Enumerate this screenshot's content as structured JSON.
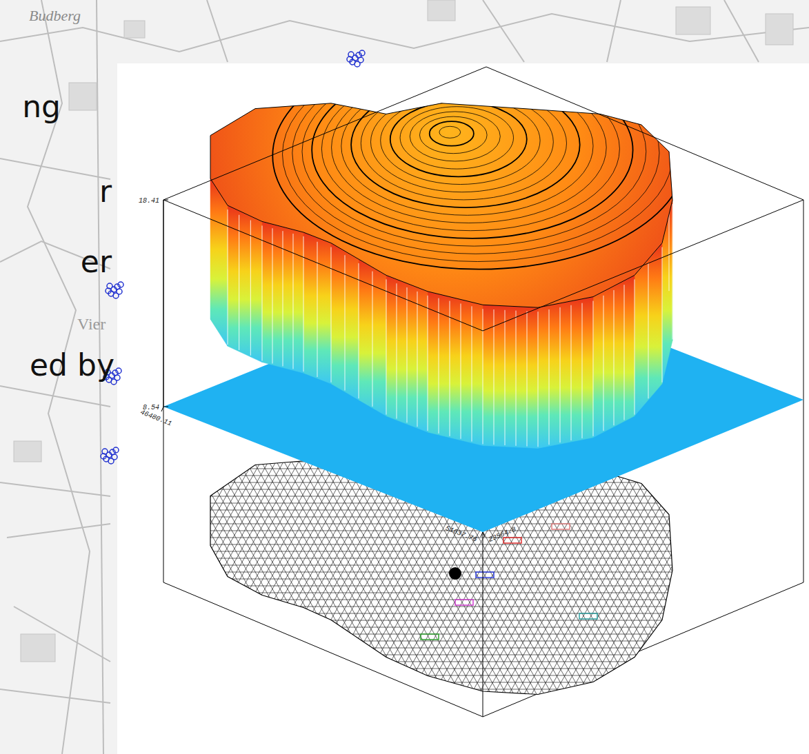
{
  "chart_data": {
    "type": "surface",
    "ylim": [
      8.54,
      18.41
    ],
    "yticks": [
      8.54,
      18.41
    ],
    "xlim": [
      46480.11,
      51637.76
    ],
    "xticks": [
      46480.11,
      51637.76
    ],
    "northing_ticks": [
      23564.8
    ],
    "contour_levels": [
      17.5,
      17,
      16.5,
      16,
      15.5,
      15,
      14.5,
      14,
      13.5,
      13,
      12.5,
      12,
      11.5,
      11,
      10.5,
      10,
      9.5,
      9
    ],
    "grid": false
  },
  "slide_text": [
    "ng",
    "r",
    "er",
    "ed by"
  ],
  "map_labels": [
    "Budberg",
    "Vier"
  ]
}
